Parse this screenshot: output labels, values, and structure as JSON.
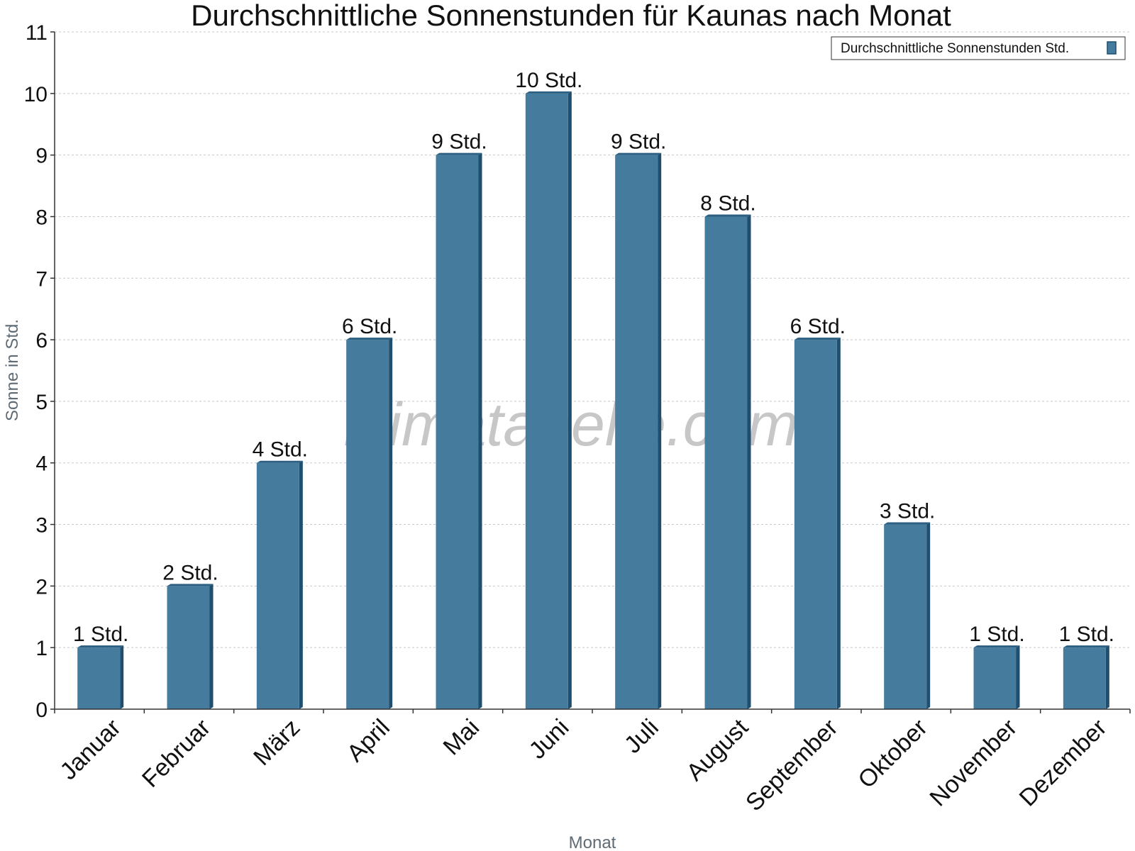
{
  "colors": {
    "bar": "#457b9d",
    "bar_side": "#1f4e6e",
    "bar_top": "#2c5f82",
    "grid": "#c8c8c8",
    "axis": "#333333"
  },
  "watermark": "klimatabelle.com",
  "chart_data": {
    "type": "bar",
    "title": "Durchschnittliche Sonnenstunden für Kaunas nach Monat",
    "xlabel": "Monat",
    "ylabel": "Sonne in Std.",
    "ylim": [
      0,
      11
    ],
    "yticks": [
      "0",
      "1",
      "2",
      "3",
      "4",
      "5",
      "6",
      "7",
      "8",
      "9",
      "10",
      "11"
    ],
    "grid": true,
    "legend_position": "top-right",
    "categories": [
      "Januar",
      "Februar",
      "März",
      "April",
      "Mai",
      "Juni",
      "Juli",
      "August",
      "September",
      "Oktober",
      "November",
      "Dezember"
    ],
    "series": [
      {
        "name": "Durchschnittliche Sonnenstunden Std.",
        "values": [
          1,
          2,
          4,
          6,
          9,
          10,
          9,
          8,
          6,
          3,
          1,
          1
        ],
        "labels": [
          "1 Std.",
          "2 Std.",
          "4 Std.",
          "6 Std.",
          "9 Std.",
          "10 Std.",
          "9 Std.",
          "8 Std.",
          "6 Std.",
          "3 Std.",
          "1 Std.",
          "1 Std."
        ]
      }
    ]
  }
}
